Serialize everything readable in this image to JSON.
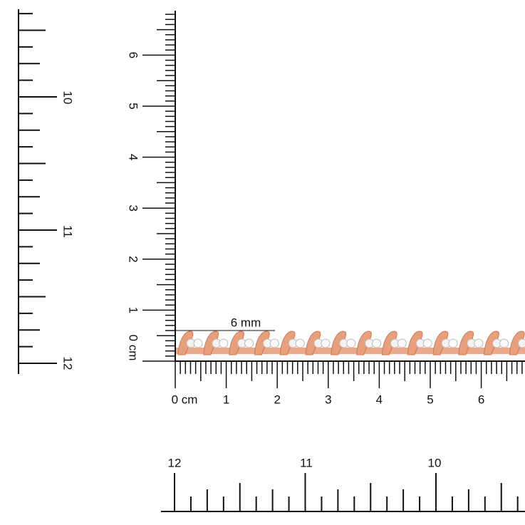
{
  "left_ruler": {
    "labels": [
      "10",
      "11",
      "12"
    ]
  },
  "vertical_ruler": {
    "labels": [
      "6",
      "5",
      "4",
      "3",
      "2",
      "1",
      "0 cm"
    ]
  },
  "horizontal_ruler": {
    "labels": [
      "0 cm",
      "1",
      "2",
      "3",
      "4",
      "5",
      "6"
    ]
  },
  "dimension": {
    "label": "6 mm"
  },
  "bottom_ruler": {
    "labels": [
      "12",
      "11",
      "10"
    ]
  }
}
